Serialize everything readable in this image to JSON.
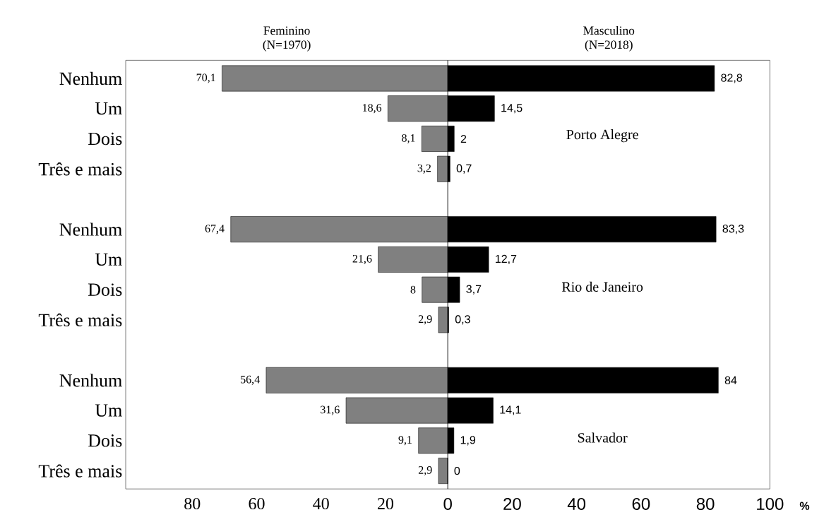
{
  "chart_data": [
    {
      "type": "bar",
      "orientation": "horizontal",
      "categories": [
        "Nenhum",
        "Um",
        "Dois",
        "Três e mais",
        null,
        "Nenhum",
        "Um",
        "Dois",
        "Três e mais",
        null,
        "Nenhum",
        "Um",
        "Dois",
        "Três e mais"
      ],
      "series": [
        {
          "name": "Feminino (N=1970)",
          "color": "#808080",
          "values": [
            70.1,
            18.6,
            8.1,
            3.2,
            null,
            67.4,
            21.6,
            8,
            2.9,
            null,
            56.4,
            31.6,
            9.1,
            2.9
          ],
          "value_labels": [
            "70,1",
            "18,6",
            "8,1",
            "3,2",
            null,
            "67,4",
            "21,6",
            "8",
            "2,9",
            null,
            "56,4",
            "31,6",
            "9,1",
            "2,9"
          ]
        }
      ],
      "xlim": [
        100,
        0
      ],
      "xticks": [
        80,
        60,
        40,
        20
      ]
    },
    {
      "type": "bar",
      "orientation": "horizontal",
      "xlabel": "%",
      "categories": [
        null,
        null,
        null,
        null,
        null,
        null,
        null,
        null,
        null,
        null,
        null,
        null,
        null,
        null
      ],
      "series": [
        {
          "name": "Masculino (N=2018)",
          "color": "#000000",
          "values": [
            82.8,
            14.5,
            2,
            0.7,
            null,
            83.3,
            12.7,
            3.7,
            0.3,
            null,
            84,
            14.1,
            1.9,
            0
          ],
          "value_labels": [
            "82,8",
            "14,5",
            "2",
            "0,7",
            null,
            "83,3",
            "12,7",
            "3,7",
            "0,3",
            null,
            "84",
            "14,1",
            "1,9",
            "0"
          ]
        }
      ],
      "xlim": [
        0,
        100
      ],
      "xticks": [
        0,
        20,
        40,
        60,
        80,
        100
      ],
      "annotations": [
        "Porto Alegre",
        "Rio de Janeiro",
        "Salvador"
      ]
    }
  ]
}
